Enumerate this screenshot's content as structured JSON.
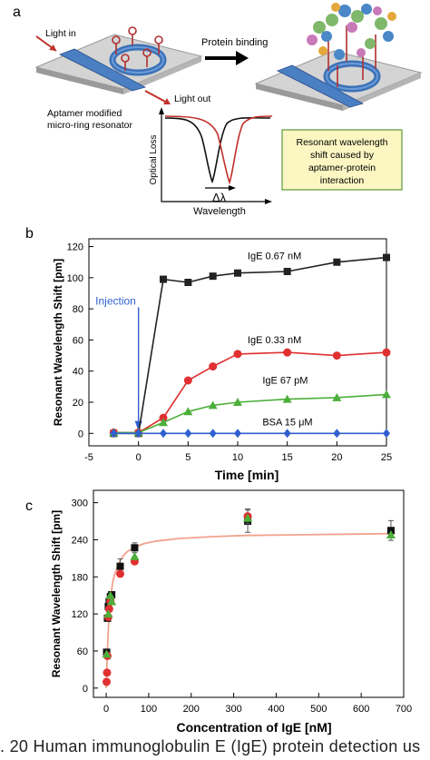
{
  "panel_a": {
    "panel_label": "a",
    "light_in": "Light in",
    "light_out": "Light out",
    "device_label_1": "Aptamer modified",
    "device_label_2": "micro-ring resonator",
    "protein_binding": "Protein binding",
    "y_label": "Optical Loss",
    "x_label": "Wavelength",
    "delta": "Δλ",
    "box_line_1": "Resonant wavelength",
    "box_line_2": "shift caused by",
    "box_line_3": "aptamer-protein",
    "box_line_4": "interaction",
    "colors": {
      "box_fill": "#fbf6c2",
      "box_stroke": "#5a9a3a",
      "dip1": "#111111",
      "dip2": "#c0302a",
      "ring": "#3b72b8",
      "arrow_red": "#c0302a"
    }
  },
  "chart_data": [
    {
      "panel_label": "b",
      "type": "line",
      "xlabel": "Time [min]",
      "ylabel": "Resonant Wavelength Shift [pm]",
      "xlim": [
        -5,
        25
      ],
      "ylim": [
        -8,
        125
      ],
      "xticks": [
        -5,
        0,
        5,
        10,
        15,
        20,
        25
      ],
      "yticks": [
        0,
        20,
        40,
        60,
        80,
        100,
        120
      ],
      "annotation": "Injection",
      "grid": false,
      "series": [
        {
          "name": "IgE 0.67 nM",
          "color": "#222222",
          "marker": "square",
          "x": [
            -2.5,
            0,
            2.5,
            5,
            7.5,
            10,
            15,
            20,
            25
          ],
          "y": [
            0,
            0,
            99,
            97,
            101,
            103,
            104,
            110,
            113
          ]
        },
        {
          "name": "IgE 0.33 nM",
          "color": "#e03030",
          "marker": "circle",
          "x": [
            -2.5,
            0,
            2.5,
            5,
            7.5,
            10,
            15,
            20,
            25
          ],
          "y": [
            0.5,
            0.5,
            10,
            34,
            43,
            51,
            52,
            50,
            52
          ]
        },
        {
          "name": "IgE 67 pM",
          "color": "#4caf3a",
          "marker": "triangle",
          "x": [
            -2.5,
            0,
            2.5,
            5,
            7.5,
            10,
            15,
            20,
            25
          ],
          "y": [
            0.5,
            0.5,
            7,
            14,
            18,
            20,
            22,
            23,
            25
          ]
        },
        {
          "name": "BSA 15 μM",
          "color": "#2f5fd0",
          "marker": "diamond",
          "x": [
            -2.5,
            0,
            2.5,
            5,
            7.5,
            10,
            15,
            20,
            25
          ],
          "y": [
            0,
            0,
            0,
            0,
            0,
            0,
            0,
            0,
            0
          ]
        }
      ]
    },
    {
      "panel_label": "c",
      "type": "scatter",
      "xlabel": "Concentration of IgE [nM]",
      "ylabel": "Resonant Wavelength Shift [pm]",
      "xlim": [
        -30,
        700
      ],
      "ylim": [
        -15,
        320
      ],
      "xticks": [
        0,
        100,
        200,
        300,
        400,
        500,
        600,
        700
      ],
      "yticks": [
        0,
        60,
        120,
        180,
        240,
        300
      ],
      "grid": false,
      "fit": {
        "color": "#f2a28e",
        "x": [
          0,
          3,
          6,
          10,
          15,
          20,
          30,
          40,
          50,
          67,
          90,
          120,
          170,
          250,
          330,
          450,
          570,
          680
        ],
        "y": [
          0,
          65,
          110,
          145,
          170,
          184,
          203,
          214,
          221,
          228,
          234,
          238,
          242,
          245,
          247,
          248,
          249,
          250
        ]
      },
      "series": [
        {
          "color": "#111111",
          "marker": "square",
          "x": [
            1,
            3,
            5,
            7,
            10,
            13,
            33,
            67,
            333,
            670
          ],
          "y": [
            58,
            113,
            132,
            140,
            148,
            151,
            197,
            227,
            270,
            255
          ],
          "err": [
            0,
            0,
            0,
            0,
            0,
            0,
            12,
            8,
            18,
            16
          ]
        },
        {
          "color": "#e03030",
          "marker": "circle",
          "x": [
            1,
            2,
            3,
            5,
            7,
            10,
            33,
            67,
            333
          ],
          "y": [
            10,
            25,
            52,
            115,
            128,
            140,
            185,
            205,
            278
          ],
          "err": [
            0,
            0,
            0,
            0,
            0,
            0,
            0,
            0,
            12
          ]
        },
        {
          "color": "#4caf3a",
          "marker": "triangle",
          "x": [
            1,
            5,
            10,
            13,
            67,
            333,
            670
          ],
          "y": [
            55,
            120,
            150,
            140,
            213,
            275,
            248
          ],
          "err": [
            0,
            0,
            0,
            0,
            0,
            0,
            0
          ]
        }
      ]
    }
  ],
  "caption": ". 20  Human  immunoglobulin  E  (IgE)  protein  detection  us"
}
